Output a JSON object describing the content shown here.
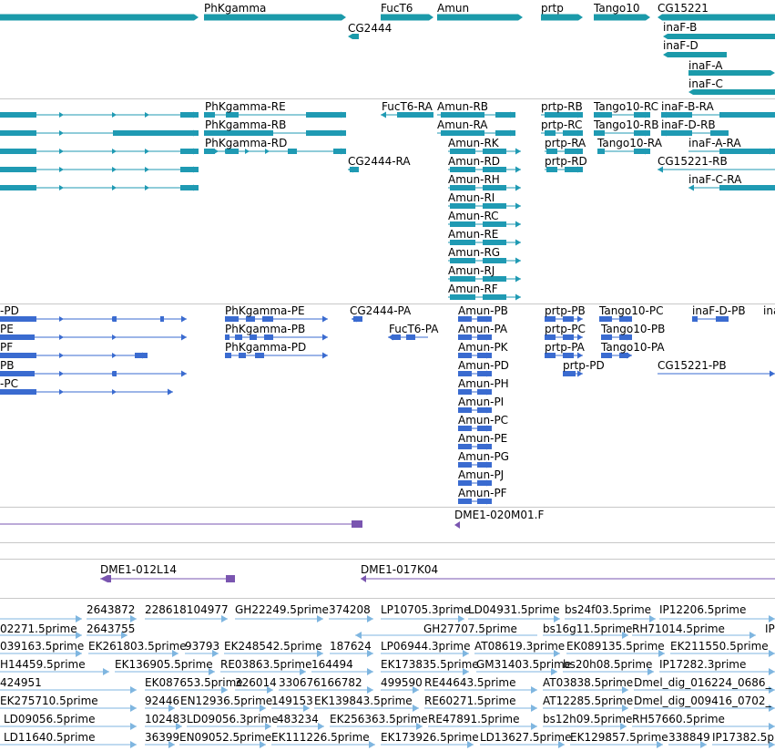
{
  "colors": {
    "gene": "#1b9aaa",
    "transcript": "#1f9ab3",
    "protein": "#3a6bd0",
    "clone": "#7a55b0",
    "est": "#7fb6e0",
    "separator": "#c8c8c8"
  },
  "tracks": {
    "genes": {
      "labels": [
        "PhKgamma",
        "FucT6",
        "Amun",
        "prtp",
        "Tango10",
        "CG15221",
        "CG2444",
        "inaF-B",
        "inaF-D",
        "inaF-A",
        "inaF-C"
      ]
    },
    "transcripts": {
      "labels": [
        "PhKgamma-RE",
        "FucT6-RA",
        "Amun-RB",
        "prtp-RB",
        "Tango10-RC",
        "inaF-B-RA",
        "PhKgamma-RB",
        "Amun-RA",
        "prtp-RC",
        "Tango10-RB",
        "inaF-D-RB",
        "PhKgamma-RD",
        "Amun-RK",
        "prtp-RA",
        "Tango10-RA",
        "inaF-A-RA",
        "CG2444-RA",
        "Amun-RD",
        "prtp-RD",
        "CG15221-RB",
        "Amun-RH",
        "inaF-C-RA",
        "Amun-RI",
        "Amun-RC",
        "Amun-RE",
        "Amun-RG",
        "Amun-RJ",
        "Amun-RF"
      ]
    },
    "proteins": {
      "labels": [
        "-PD",
        "PhKgamma-PE",
        "CG2444-PA",
        "Amun-PB",
        "prtp-PB",
        "Tango10-PC",
        "inaF-D-PB",
        "ina",
        "PE",
        "PhKgamma-PB",
        "FucT6-PA",
        "Amun-PA",
        "prtp-PC",
        "Tango10-PB",
        "PF",
        "PhKgamma-PD",
        "Amun-PK",
        "prtp-PA",
        "Tango10-PA",
        "PB",
        "Amun-PD",
        "prtp-PD",
        "CG15221-PB",
        "-PC",
        "Amun-PH",
        "Amun-PI",
        "Amun-PC",
        "Amun-PE",
        "Amun-PG",
        "Amun-PJ",
        "Amun-PF"
      ]
    },
    "clones": {
      "labels": [
        "DME1-020M01.F",
        "DME1-012L14",
        "DME1-017K04"
      ]
    },
    "ests": {
      "labels": [
        "2643872",
        "228618104977",
        "GH22249.5prime",
        "374208",
        "LP10705.3prime",
        "LD04931.5prime",
        "bs24f03.5prime",
        "IP12206.5prime",
        "02271.5prime",
        "2643755",
        "GH27707.5prime",
        "bs16g11.5prime",
        "RH71014.5prime",
        "IP",
        "039163.5prime",
        "EK261803.5prime",
        "93793",
        "EK248542.5prime",
        "187624",
        "LP06944.3prime",
        "AT08619.3prime",
        "EK089135.5prime",
        "EK211550.5prime",
        "H14459.5prime",
        "EK136905.5prime",
        "RE03863.5prime",
        "164494",
        "EK173835.5prime",
        "GM31403.5prime",
        "bs20h08.5prime",
        "IP17282.3prime",
        "424951",
        "EK087653.5prime",
        "326014",
        "330676166782",
        "499590",
        "RE44643.5prime",
        "AT03838.5prime",
        "Dmel_dig_016224_0686_",
        "EK275710.5prime",
        "92446",
        "EN12936.5prime",
        "149153",
        "EK139843.5prime",
        "RE60271.5prime",
        "AT12285.5prime",
        "Dmel_dig_009416_0702_",
        "LD09056.5prime",
        "102483",
        "LD09056.3prime",
        "483234",
        "EK256363.5prime",
        "RE47891.5prime",
        "bs12h09.5prime",
        "RH57660.5prime",
        "LD11640.5prime",
        "36399",
        "EN09052.5prime",
        "EK111226.5prime",
        "EK173926.5prime",
        "LD13627.5prime",
        "EK129857.5prime",
        "338849",
        "IP17382.5prime"
      ]
    }
  }
}
